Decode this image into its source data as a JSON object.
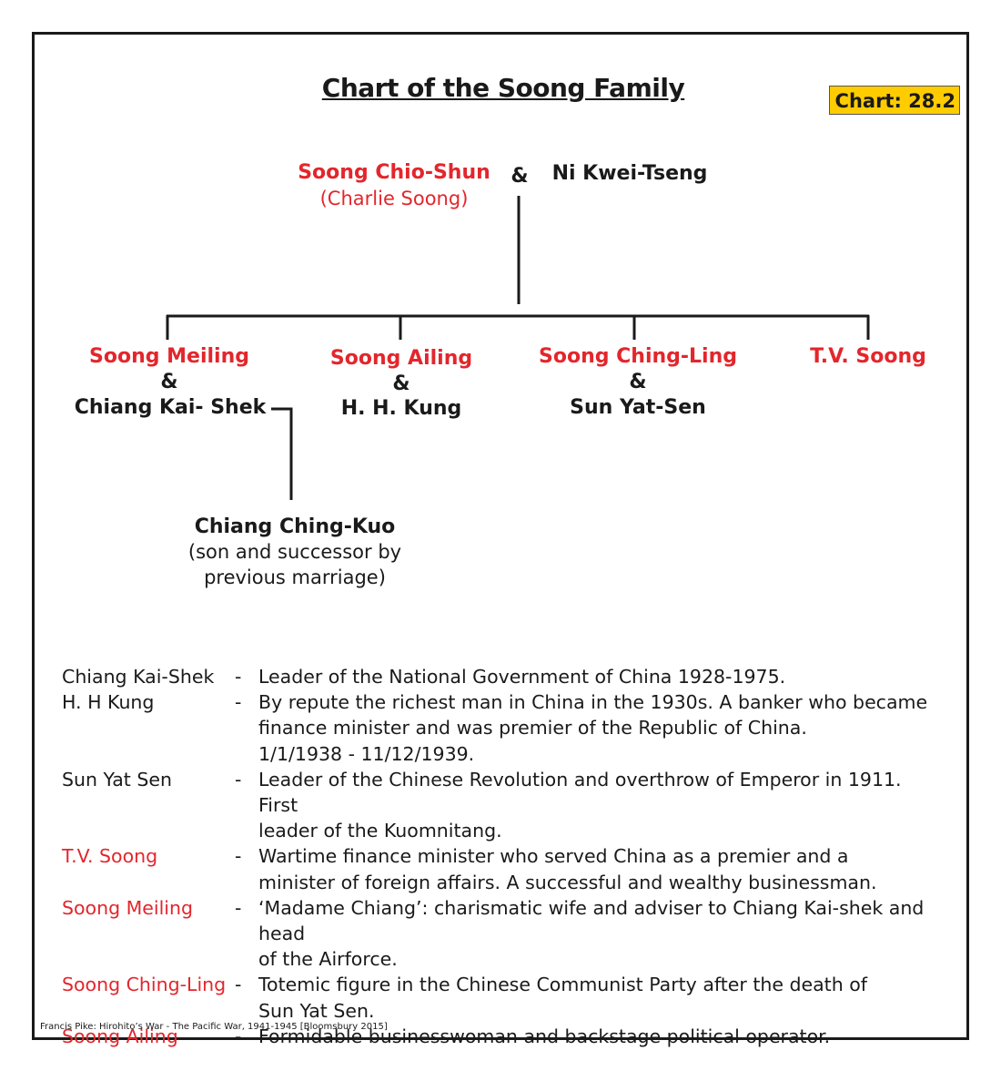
{
  "title": "Chart of the Soong Family",
  "badge": "Chart: 28.2",
  "colors": {
    "highlight": "#e3262c",
    "badge": "#ffcc00",
    "text": "#1a1a1a"
  },
  "parents": {
    "father": "Soong Chio-Shun",
    "father_alias": "(Charlie Soong)",
    "amp": "&",
    "mother": "Ni Kwei-Tseng"
  },
  "children": [
    {
      "name": "Soong Meiling",
      "amp": "&",
      "spouse": "Chiang Kai- Shek"
    },
    {
      "name": "Soong Ailing",
      "amp": "&",
      "spouse": "H. H. Kung"
    },
    {
      "name": "Soong Ching-Ling",
      "amp": "&",
      "spouse": "Sun Yat-Sen"
    },
    {
      "name": "T.V. Soong"
    }
  ],
  "stepson": {
    "name": "Chiang Ching-Kuo",
    "note_line1": "(son and successor by",
    "note_line2": "previous marriage)"
  },
  "legend": [
    {
      "name": "Chiang Kai-Shek",
      "highlight": false,
      "dash": "-",
      "desc": "Leader of the National Government of China 1928-1975."
    },
    {
      "name": "H. H Kung",
      "highlight": false,
      "dash": "-",
      "desc": "By repute the richest man in China in the 1930s. A banker who became\nfinance minister and was premier of the Republic of China.\n1/1/1938 - 11/12/1939."
    },
    {
      "name": "Sun Yat Sen",
      "highlight": false,
      "dash": "-",
      "desc": "Leader of the Chinese Revolution and overthrow of Emperor in 1911. First\nleader of the Kuomnitang."
    },
    {
      "name": "T.V. Soong",
      "highlight": true,
      "dash": "-",
      "desc": "Wartime finance minister who served China as a premier and a\nminister of foreign affairs. A successful and wealthy businessman."
    },
    {
      "name": "Soong Meiling",
      "highlight": true,
      "dash": "-",
      "desc": "‘Madame Chiang’: charismatic wife and adviser to Chiang Kai-shek and head\nof the Airforce."
    },
    {
      "name": "Soong Ching-Ling",
      "highlight": true,
      "dash": "-",
      "desc": "Totemic figure in the Chinese Communist Party after the death of\nSun Yat Sen."
    },
    {
      "name": "Soong Ailing",
      "highlight": true,
      "dash": "-",
      "desc": "Formidable businesswoman and backstage political operator."
    }
  ],
  "footer": "Francis Pike:  Hirohito’s War - The Pacific War, 1941-1945   [Bloomsbury 2015]"
}
